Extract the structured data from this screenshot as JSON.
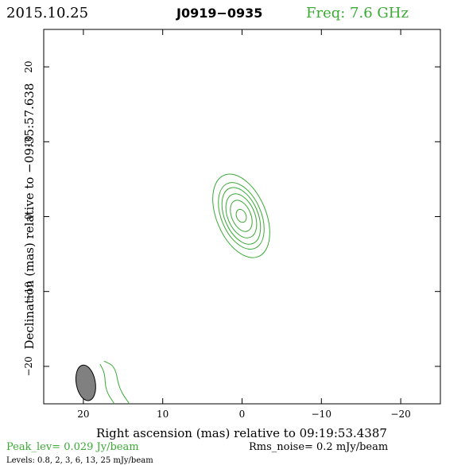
{
  "header": {
    "date": "2015.10.25",
    "source": "J0919−0935",
    "freq": "Freq: 7.6 GHz",
    "freq_color": "#3aaa35"
  },
  "footer": {
    "peak": "Peak_lev=  0.029 Jy/beam",
    "peak_color": "#3aaa35",
    "rms": "Rms_noise=  0.2 mJy/beam",
    "levels": "Levels: 0.8,   2,   3,   6,  13,  25 mJy/beam"
  },
  "chart_data": {
    "type": "contour",
    "title": "J0919−0935",
    "xlabel": "Right ascension (mas) relative to 09:19:53.4387",
    "ylabel": "Declination (mas) relative to −09:35:57.638",
    "xlim": [
      25,
      -25
    ],
    "ylim": [
      -25,
      25
    ],
    "x_ticks": [
      20,
      10,
      0,
      -10,
      -20
    ],
    "y_ticks": [
      20,
      10,
      0,
      -10,
      -20
    ],
    "x_tick_labels": [
      "20",
      "10",
      "0",
      "−10",
      "−20"
    ],
    "y_tick_labels": [
      "20",
      "10",
      "0",
      "−10",
      "−20"
    ],
    "contour_color": "#3aaa35",
    "levels_mJy": [
      0.8,
      2,
      3,
      6,
      13,
      25
    ],
    "core": {
      "center": [
        0.1,
        0.1
      ],
      "position_angle_deg": -23,
      "contours": [
        {
          "level": 0.8,
          "semi_major": 5.9,
          "semi_minor": 3.1
        },
        {
          "level": 2,
          "semi_major": 4.7,
          "semi_minor": 2.5
        },
        {
          "level": 3,
          "semi_major": 4.0,
          "semi_minor": 2.1
        },
        {
          "level": 6,
          "semi_major": 3.1,
          "semi_minor": 1.7
        },
        {
          "level": 13,
          "semi_major": 2.2,
          "semi_minor": 1.2
        },
        {
          "level": 25,
          "semi_major": 0.9,
          "semi_minor": 0.6
        }
      ]
    },
    "beam": {
      "center": [
        19.7,
        -22.2
      ],
      "semi_major": 2.4,
      "semi_minor": 1.2,
      "position_angle_deg": -10,
      "fill": "#808080"
    },
    "edge_contours": [
      {
        "points": [
          [
            17.4,
            -19.3
          ],
          [
            16.0,
            -20.0
          ],
          [
            15.5,
            -23.0
          ],
          [
            14.2,
            -25
          ]
        ]
      },
      {
        "points": [
          [
            17.9,
            -19.7
          ],
          [
            17.3,
            -20.9
          ],
          [
            17.2,
            -23.2
          ],
          [
            16.1,
            -25
          ]
        ]
      }
    ]
  }
}
